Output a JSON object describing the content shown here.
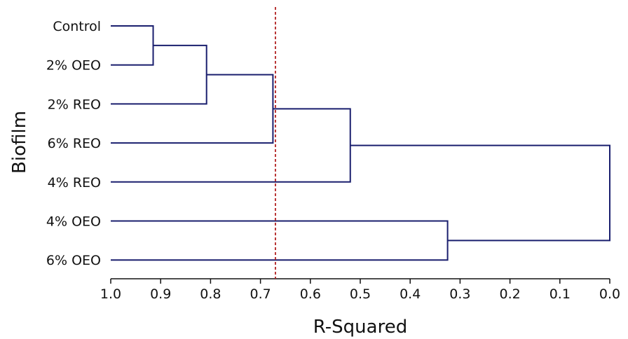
{
  "chart_data": {
    "type": "dendrogram",
    "xlabel": "R-Squared",
    "ylabel": "Biofilm",
    "xlim": [
      1.0,
      0.0
    ],
    "x_ticks": [
      "1.0",
      "0.9",
      "0.8",
      "0.7",
      "0.6",
      "0.5",
      "0.4",
      "0.3",
      "0.2",
      "0.1",
      "0.0"
    ],
    "x_tick_values": [
      1.0,
      0.9,
      0.8,
      0.7,
      0.6,
      0.5,
      0.4,
      0.3,
      0.2,
      0.1,
      0.0
    ],
    "leaves": [
      "Control",
      "2% OEO",
      "2% REO",
      "6% REO",
      "4% REO",
      "4% OEO",
      "6% OEO"
    ],
    "merges": [
      {
        "left": "Control",
        "right": "2% OEO",
        "r_squared": 0.915
      },
      {
        "left": "Control+2% OEO",
        "right": "2% REO",
        "r_squared": 0.808
      },
      {
        "left": "Control+2% OEO+2% REO",
        "right": "6% REO",
        "r_squared": 0.675
      },
      {
        "left": "Control+2% OEO+2% REO+6% REO",
        "right": "4% REO",
        "r_squared": 0.52
      },
      {
        "left": "4% OEO",
        "right": "6% OEO",
        "r_squared": 0.325
      },
      {
        "left": "Control+2% OEO+2% REO+6% REO+4% REO",
        "right": "4% OEO+6% OEO",
        "r_squared": 0.0
      }
    ],
    "cutoff": 0.67,
    "colors": {
      "branches": "#1a1f6e",
      "cutoff": "#b22222",
      "axis": "#111111"
    }
  }
}
